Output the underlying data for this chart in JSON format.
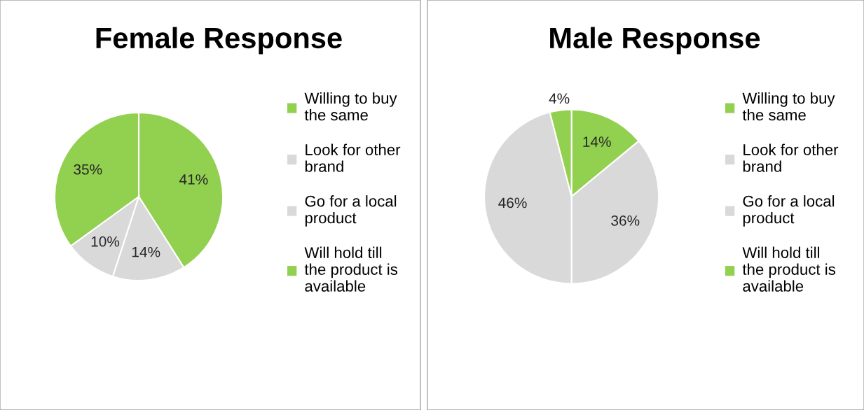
{
  "chart_data": [
    {
      "type": "pie",
      "title": "Female Response",
      "categories": [
        "Willing to buy the same",
        "Look for other brand",
        "Go for a local product",
        "Will hold till the product is available"
      ],
      "values": [
        41,
        14,
        10,
        35
      ],
      "colors": [
        "#92d050",
        "#d9d9d9",
        "#d9d9d9",
        "#92d050"
      ],
      "value_labels": [
        "41%",
        "14%",
        "10%",
        "35%"
      ],
      "legend": "right"
    },
    {
      "type": "pie",
      "title": "Male Response",
      "categories": [
        "Willing to buy the same",
        "Look for other brand",
        "Go for a local product",
        "Will hold till the product is available"
      ],
      "values": [
        14,
        36,
        46,
        4
      ],
      "colors": [
        "#92d050",
        "#d9d9d9",
        "#d9d9d9",
        "#92d050"
      ],
      "value_labels": [
        "14%",
        "36%",
        "46%",
        "4%"
      ],
      "legend": "right"
    }
  ]
}
